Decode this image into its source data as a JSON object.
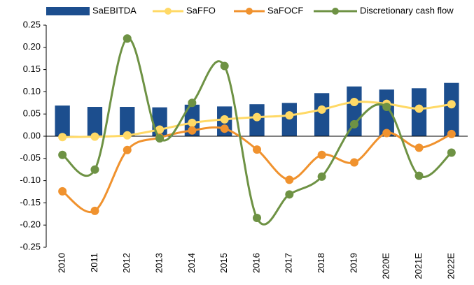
{
  "chart_data": {
    "type": "bar",
    "categories": [
      "2010",
      "2011",
      "2012",
      "2013",
      "2014",
      "2015",
      "2016",
      "2017",
      "2018",
      "2019",
      "2020E",
      "2021E",
      "2022E"
    ],
    "series": [
      {
        "name": "SaEBITDA",
        "type": "bar",
        "color": "#1c4e8e",
        "values": [
          0.069,
          0.066,
          0.066,
          0.065,
          0.071,
          0.067,
          0.072,
          0.075,
          0.097,
          0.112,
          0.105,
          0.108,
          0.12
        ]
      },
      {
        "name": "SaFFO",
        "type": "line",
        "color": "#ffd966",
        "values": [
          -0.002,
          -0.001,
          0.002,
          0.015,
          0.03,
          0.038,
          0.043,
          0.047,
          0.06,
          0.077,
          0.073,
          0.062,
          0.072
        ]
      },
      {
        "name": "SaFOCF",
        "type": "line",
        "color": "#f0922e",
        "values": [
          -0.124,
          -0.168,
          -0.031,
          -0.003,
          0.013,
          0.017,
          -0.03,
          -0.098,
          -0.042,
          -0.059,
          0.007,
          -0.026,
          0.005
        ]
      },
      {
        "name": "Discretionary cash flow",
        "type": "line",
        "color": "#6e9244",
        "values": [
          -0.042,
          -0.075,
          0.22,
          -0.005,
          0.075,
          0.158,
          -0.184,
          -0.131,
          -0.091,
          0.027,
          0.066,
          -0.089,
          -0.037
        ]
      }
    ],
    "ylim": [
      -0.25,
      0.25
    ],
    "yticks": [
      {
        "value": -0.25,
        "label": "-0.25"
      },
      {
        "value": -0.2,
        "label": "-0.20"
      },
      {
        "value": -0.15,
        "label": "-0.15"
      },
      {
        "value": -0.1,
        "label": "-0.10"
      },
      {
        "value": -0.05,
        "label": "-0.05"
      },
      {
        "value": 0,
        "label": "0.00"
      },
      {
        "value": 0.05,
        "label": "0.05"
      },
      {
        "value": 0.1,
        "label": "0.10"
      },
      {
        "value": 0.15,
        "label": "0.15"
      },
      {
        "value": 0.2,
        "label": "0.20"
      },
      {
        "value": 0.25,
        "label": "0.25"
      }
    ],
    "legend": "top",
    "grid": false
  }
}
